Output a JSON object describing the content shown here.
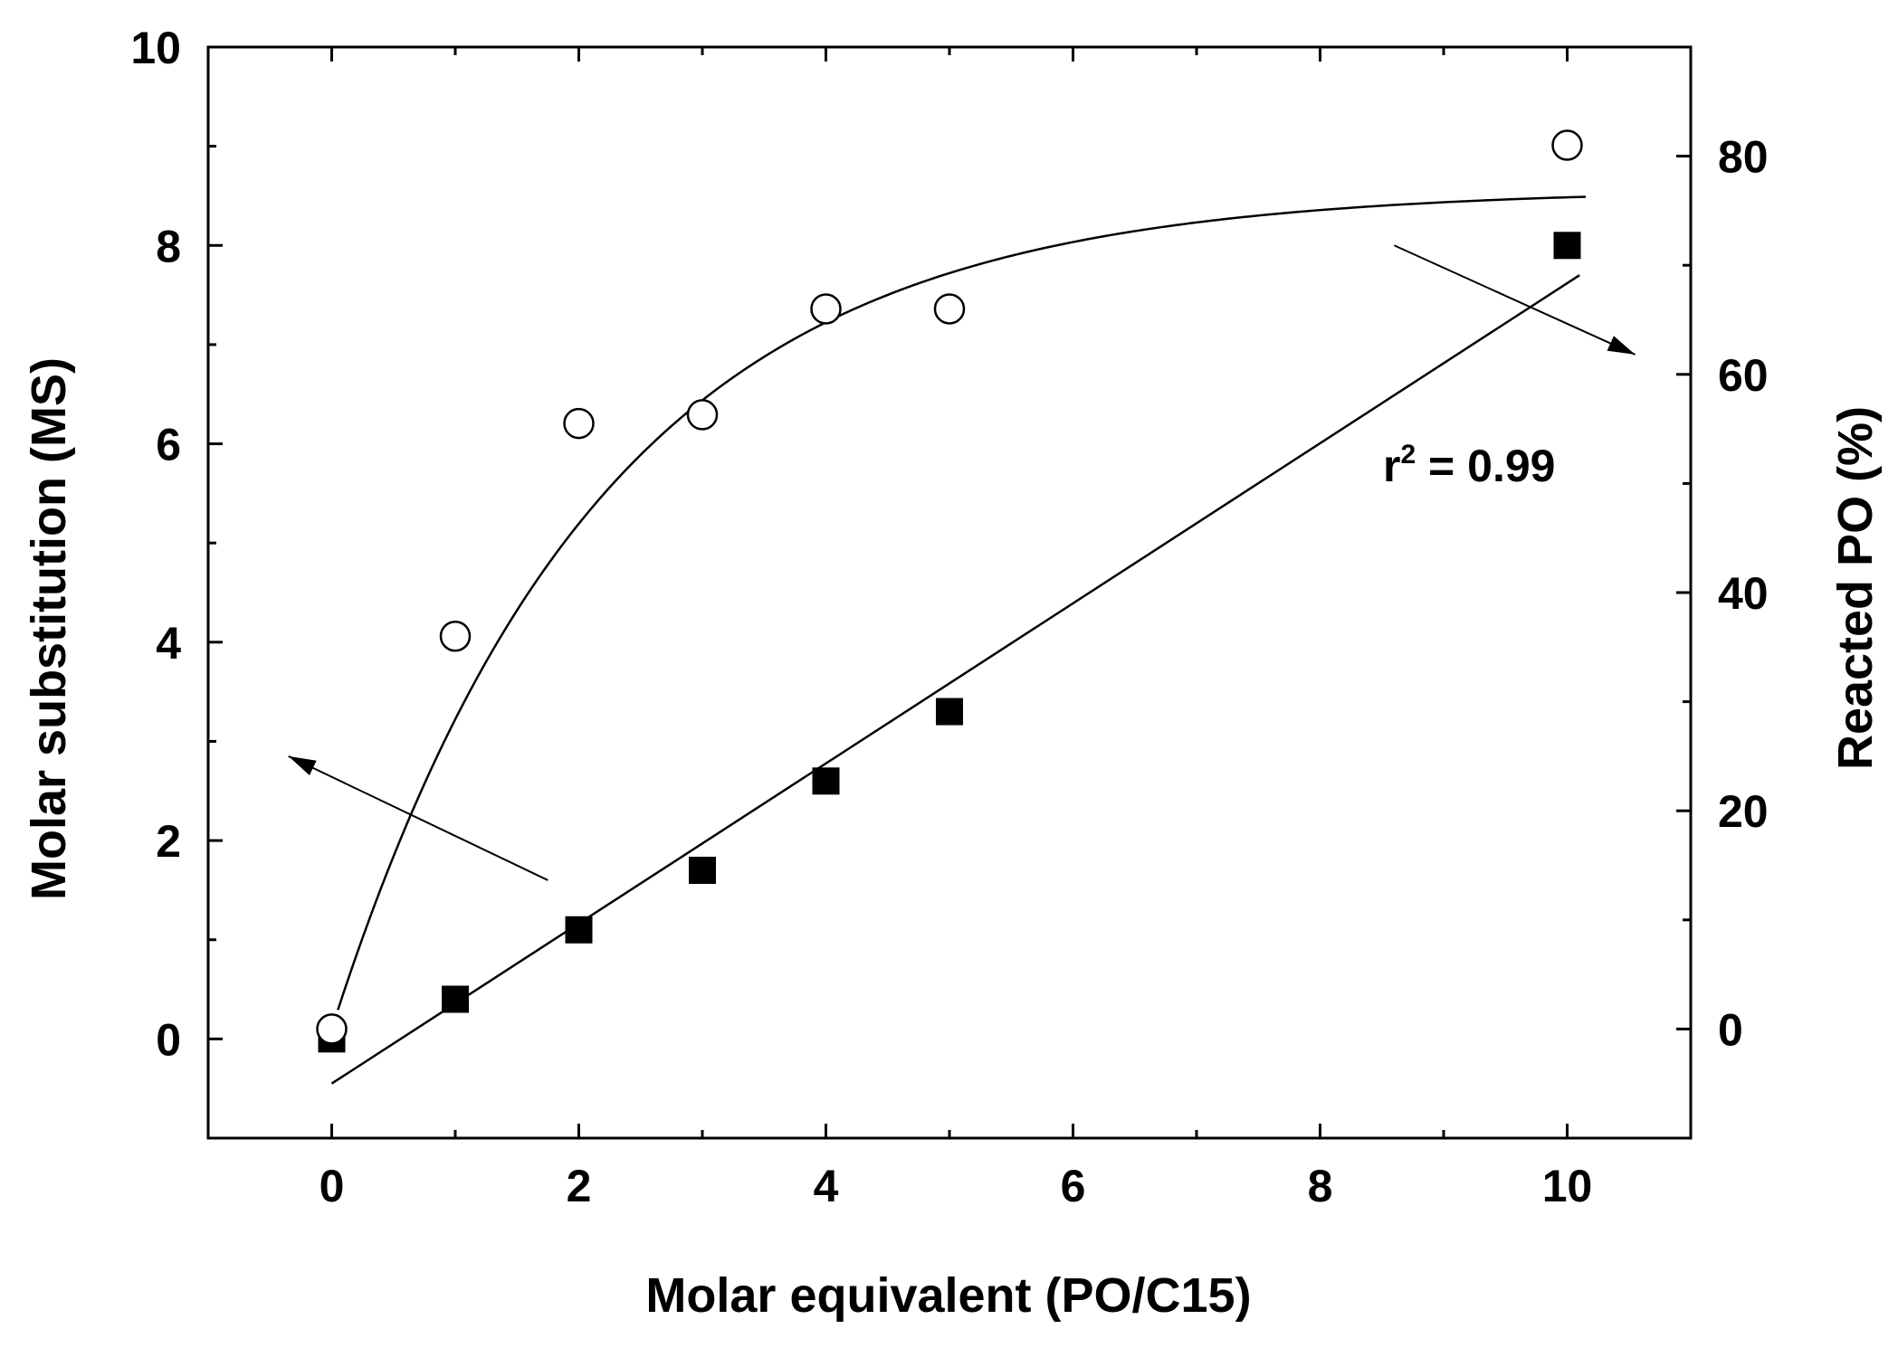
{
  "chart_data": {
    "type": "scatter",
    "x_axis": {
      "label": "Molar equivalent (PO/C15)",
      "range": [
        -1,
        11
      ],
      "major_ticks": [
        0,
        2,
        4,
        6,
        8,
        10
      ],
      "minor_ticks": [
        1,
        3,
        5,
        7,
        9
      ]
    },
    "y_axis_left": {
      "label": "Molar substitution (MS)",
      "range": [
        -1,
        10
      ],
      "major_ticks": [
        0,
        2,
        4,
        6,
        8,
        10
      ],
      "minor_ticks": [
        1,
        3,
        5,
        7,
        9
      ]
    },
    "y_axis_right": {
      "label": "Reacted PO (%)",
      "range": [
        -10,
        90
      ],
      "major_ticks": [
        0,
        20,
        40,
        60,
        80
      ],
      "minor_ticks": [
        10,
        30,
        50,
        70
      ]
    },
    "series": [
      {
        "name": "Molar substitution (MS)",
        "axis": "left",
        "marker": "filled-square",
        "x": [
          0,
          1,
          2,
          3,
          4,
          5,
          10
        ],
        "y": [
          0.0,
          0.4,
          1.1,
          1.7,
          2.6,
          3.3,
          8.0
        ],
        "fit": {
          "type": "linear",
          "x": [
            0,
            10.1
          ],
          "y": [
            -0.45,
            7.7
          ]
        }
      },
      {
        "name": "Reacted PO (%)",
        "axis": "right",
        "marker": "open-circle",
        "x": [
          0,
          1,
          2,
          3,
          4,
          5,
          10
        ],
        "y": [
          0,
          36,
          55.5,
          56.3,
          66,
          66,
          81
        ],
        "fit": {
          "type": "exponential-rise",
          "asymptote": 77,
          "rate": 0.46,
          "x_start": 0.05,
          "x_end": 10.15
        }
      }
    ],
    "annotations": {
      "r2_prefix": "r",
      "r2_superscript": "2",
      "r2_suffix": " = 0.99"
    },
    "arrows": [
      {
        "label": "points to left axis",
        "from": [
          1.75,
          1.6
        ],
        "to": [
          -0.35,
          2.85
        ]
      },
      {
        "label": "points to right axis",
        "from": [
          8.6,
          8.0
        ],
        "to": [
          10.55,
          6.9
        ]
      }
    ],
    "grid": false,
    "legend": "none"
  }
}
